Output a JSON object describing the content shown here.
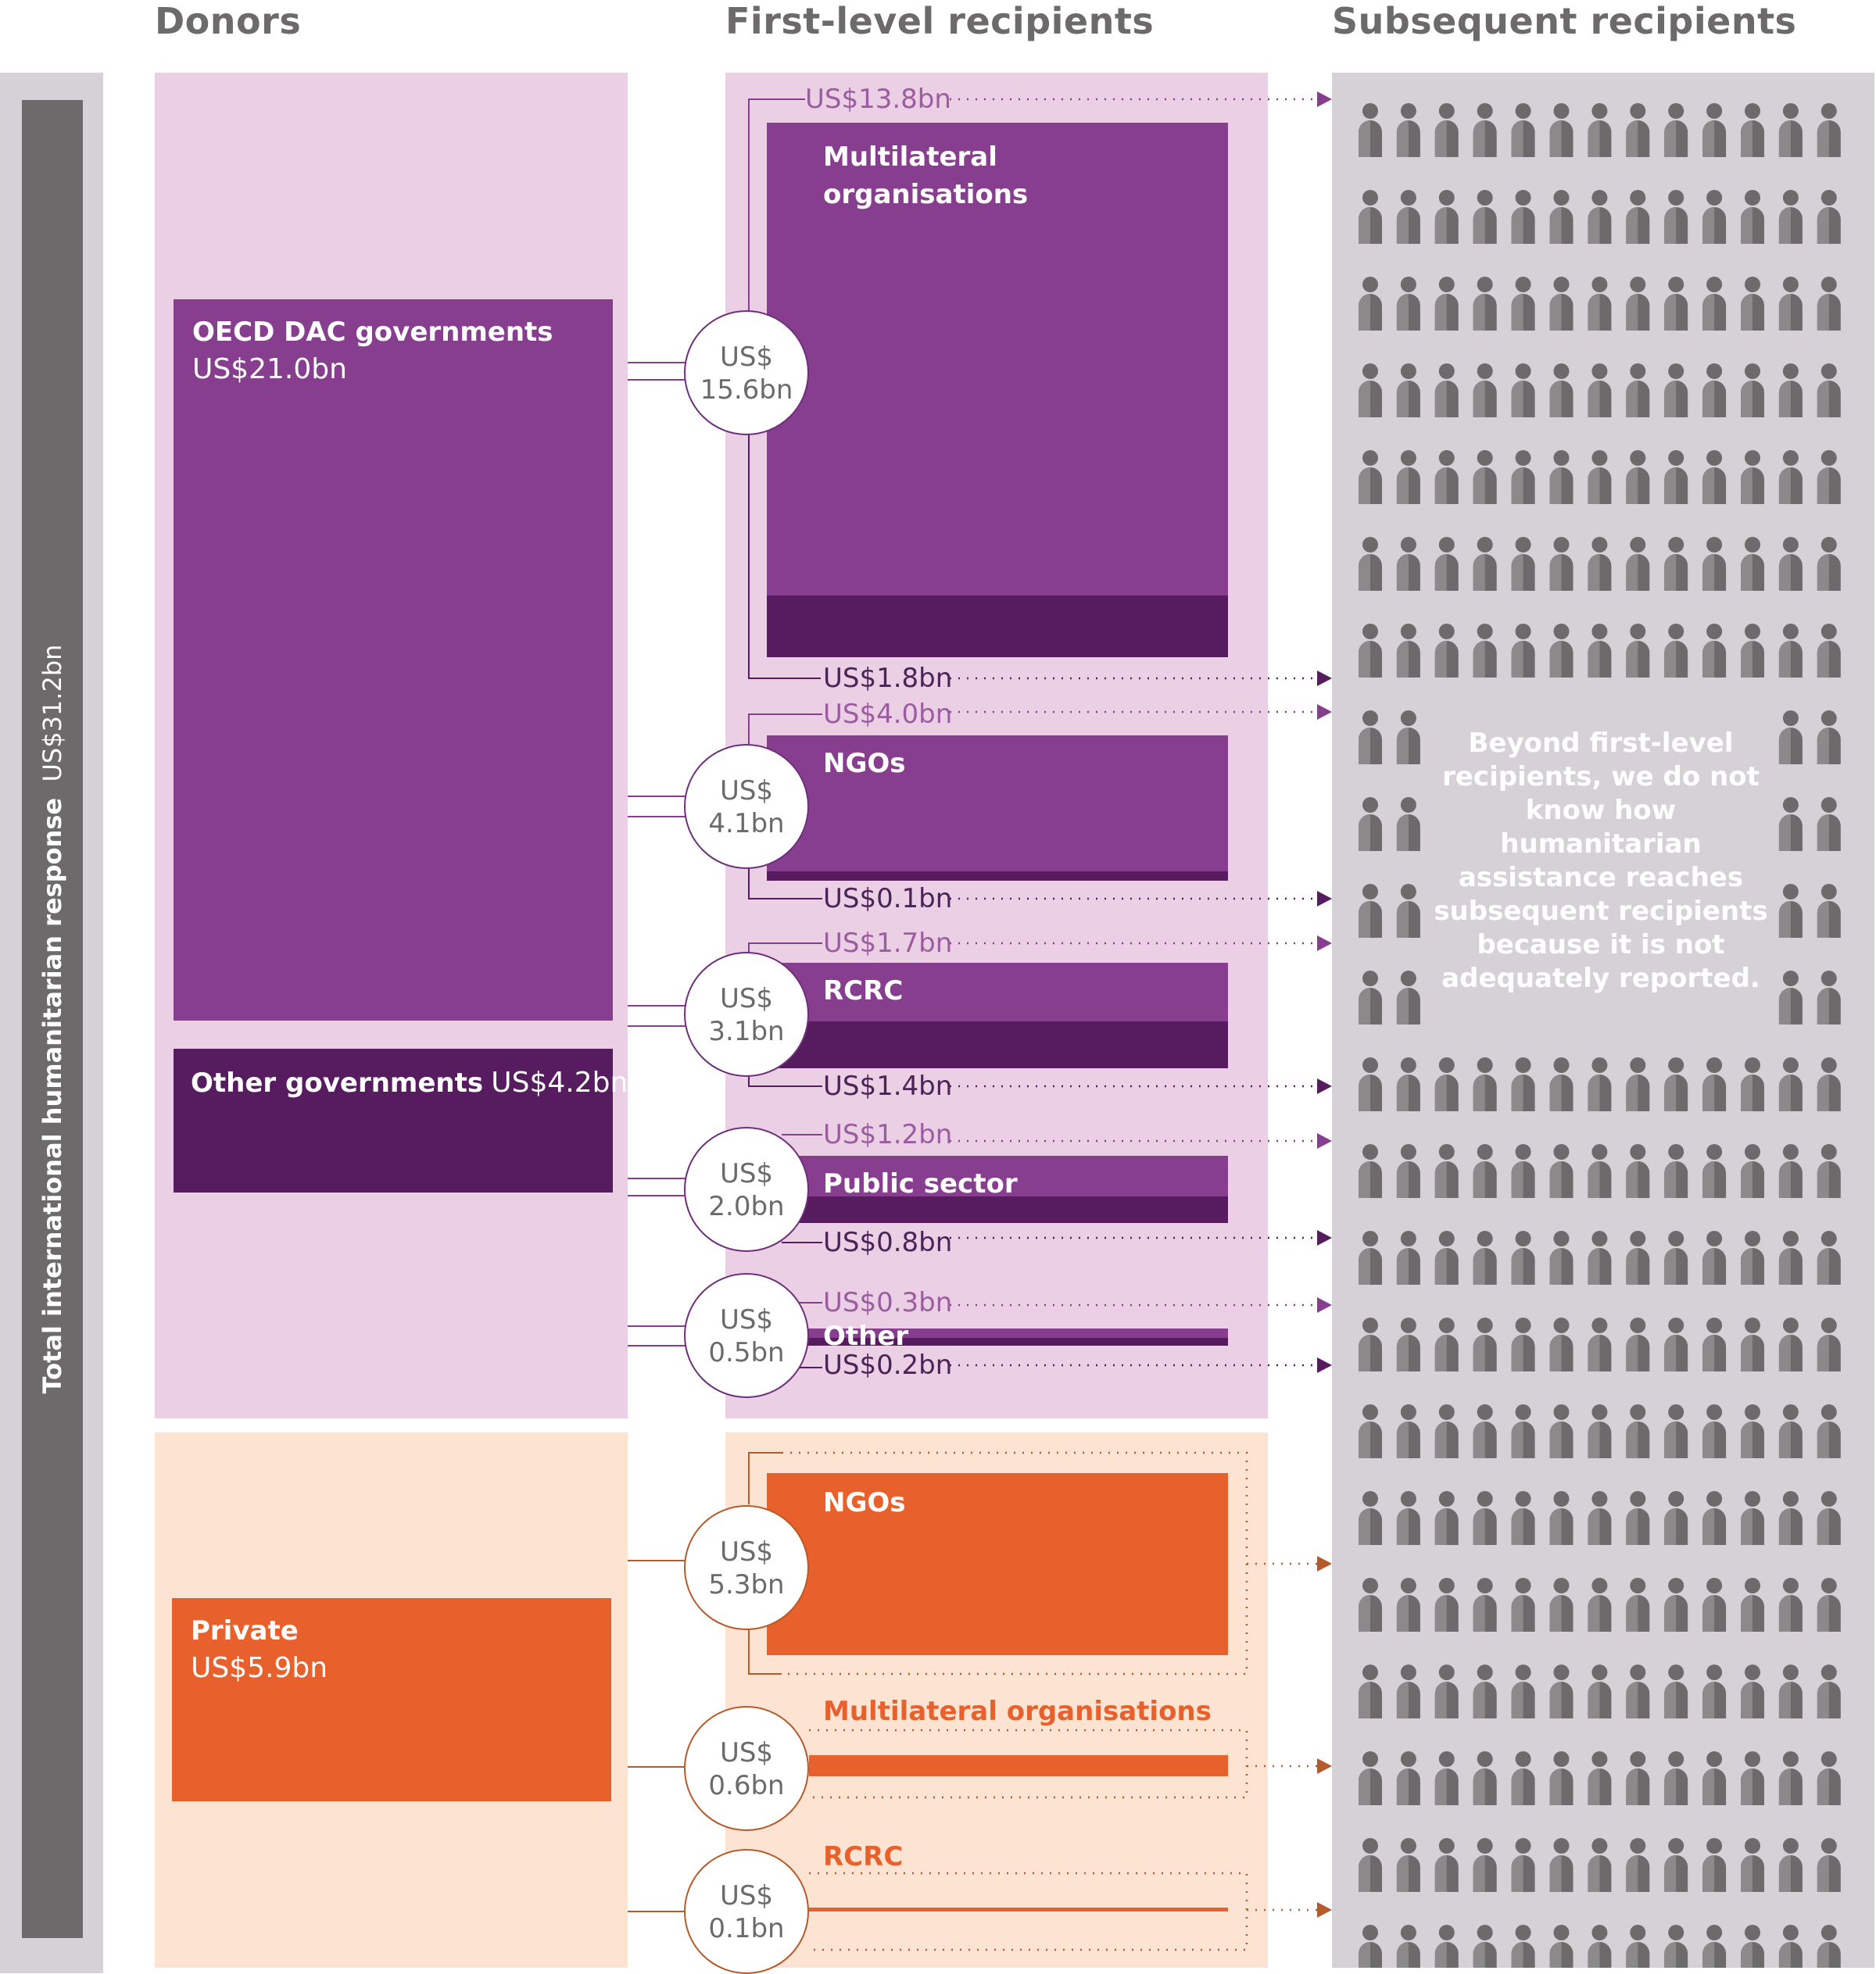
{
  "headers": {
    "donors": "Donors",
    "first_level": "First-level recipients",
    "subsequent": "Subsequent recipients"
  },
  "total": {
    "label": "Total international humanitarian response",
    "value": "US$31.2bn"
  },
  "donors": {
    "oecd": {
      "label": "OECD DAC governments",
      "value": "US$21.0bn"
    },
    "other_gov": {
      "label": "Other governments",
      "value": "US$4.2bn"
    },
    "private": {
      "label": "Private",
      "value": "US$5.9bn"
    }
  },
  "public_flows": [
    {
      "name": "Multilateral organisations",
      "total_line1": "US$",
      "total_line2": "15.6bn",
      "top": "US$13.8bn",
      "bottom": "US$1.8bn"
    },
    {
      "name": "NGOs",
      "total_line1": "US$",
      "total_line2": "4.1bn",
      "top": "US$4.0bn",
      "bottom": "US$0.1bn"
    },
    {
      "name": "RCRC",
      "total_line1": "US$",
      "total_line2": "3.1bn",
      "top": "US$1.7bn",
      "bottom": "US$1.4bn"
    },
    {
      "name": "Public sector",
      "total_line1": "US$",
      "total_line2": "2.0bn",
      "top": "US$1.2bn",
      "bottom": "US$0.8bn"
    },
    {
      "name": "Other",
      "total_line1": "US$",
      "total_line2": "0.5bn",
      "top": "US$0.3bn",
      "bottom": "US$0.2bn"
    }
  ],
  "private_flows": [
    {
      "name": "NGOs",
      "total_line1": "US$",
      "total_line2": "5.3bn"
    },
    {
      "name": "Multilateral organisations",
      "total_line1": "US$",
      "total_line2": "0.6bn"
    },
    {
      "name": "RCRC",
      "total_line1": "US$",
      "total_line2": "0.1bn"
    }
  ],
  "note": {
    "line1": "Beyond first-level",
    "line2": "recipients, we do not",
    "line3": "know how humanitarian",
    "line4": "assistance reaches",
    "line5": "subsequent recipients",
    "line6": "because it is not",
    "line7": "adequately reported."
  },
  "colors": {
    "purple": "#873e8e",
    "dark_purple": "#561c5f",
    "light_purple": "#ebd0e5",
    "orange": "#e8612c",
    "light_orange": "#fde3d2",
    "grey": "#d5d1d6",
    "dark_grey": "#6d6a6b"
  }
}
